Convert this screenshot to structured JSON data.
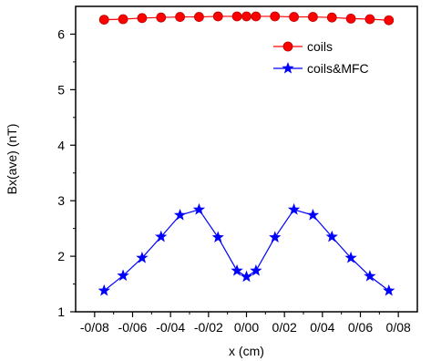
{
  "chart_data": {
    "type": "line",
    "xlabel": "x (cm)",
    "ylabel": "Bx(ave) (nT)",
    "xlim": [
      -0.09,
      0.09
    ],
    "ylim": [
      1,
      6.5
    ],
    "x_ticks": [
      -0.08,
      -0.06,
      -0.04,
      -0.02,
      0.0,
      0.02,
      0.04,
      0.06,
      0.08
    ],
    "x_tick_labels": [
      "-0/08",
      "-0/06",
      "-0/04",
      "-0/02",
      "0/00",
      "0/02",
      "0/04",
      "0/06",
      "0/08"
    ],
    "y_ticks": [
      1,
      2,
      3,
      4,
      5,
      6
    ],
    "y_tick_labels": [
      "1",
      "2",
      "3",
      "4",
      "5",
      "6"
    ],
    "legend_position": "top-right",
    "series": [
      {
        "name": "coils",
        "color": "#ff0000",
        "marker": "circle",
        "x": [
          -0.075,
          -0.065,
          -0.055,
          -0.045,
          -0.035,
          -0.025,
          -0.015,
          -0.005,
          0.0,
          0.005,
          0.015,
          0.025,
          0.035,
          0.045,
          0.055,
          0.065,
          0.075
        ],
        "y": [
          6.26,
          6.27,
          6.29,
          6.3,
          6.31,
          6.31,
          6.32,
          6.32,
          6.32,
          6.32,
          6.32,
          6.31,
          6.31,
          6.3,
          6.28,
          6.27,
          6.25
        ]
      },
      {
        "name": "coils&MFC",
        "color": "#0000ff",
        "marker": "star",
        "x": [
          -0.075,
          -0.065,
          -0.055,
          -0.045,
          -0.035,
          -0.025,
          -0.015,
          -0.005,
          0.0,
          0.005,
          0.015,
          0.025,
          0.035,
          0.045,
          0.055,
          0.065,
          0.075
        ],
        "y": [
          1.38,
          1.65,
          1.97,
          2.35,
          2.74,
          2.84,
          2.34,
          1.74,
          1.63,
          1.74,
          2.34,
          2.84,
          2.74,
          2.35,
          1.97,
          1.64,
          1.38
        ]
      }
    ]
  }
}
